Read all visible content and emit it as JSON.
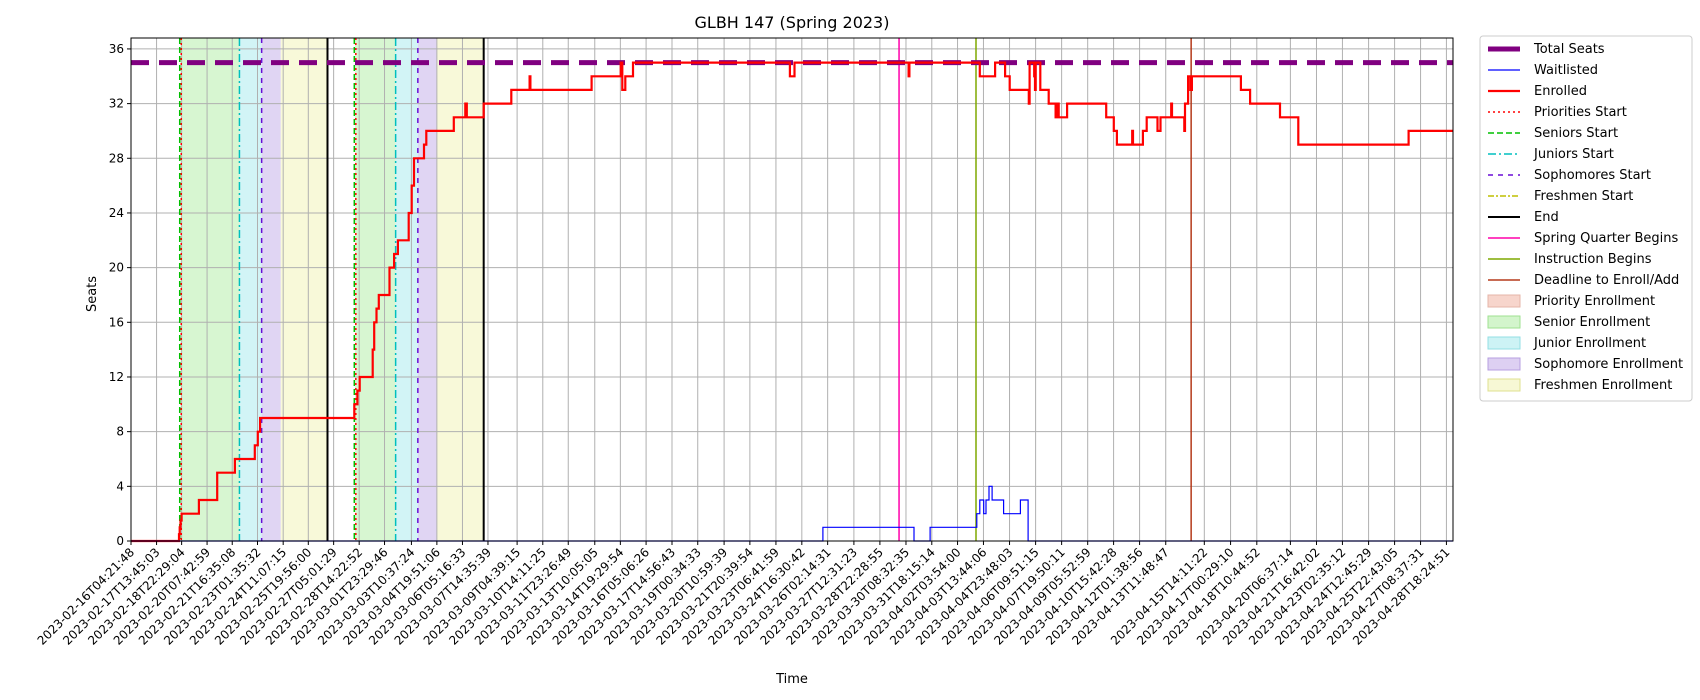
{
  "chart_data": {
    "type": "line",
    "title": "GLBH 147 (Spring 2023)",
    "xlabel": "Time",
    "ylabel": "Seats",
    "ylim": [
      0,
      36.8
    ],
    "yticks": [
      0,
      4,
      8,
      12,
      16,
      20,
      24,
      28,
      32,
      36
    ],
    "xlim": [
      "2023-02-16T04:21:48",
      "2023-04-29T03:00:00"
    ],
    "xticks": [
      "2023-02-16T04:21:48",
      "2023-02-17T13:45:03",
      "2023-02-18T22:29:04",
      "2023-02-20T07:42:59",
      "2023-02-21T16:35:08",
      "2023-02-23T01:35:32",
      "2023-02-24T11:07:15",
      "2023-02-25T19:56:00",
      "2023-02-27T05:01:29",
      "2023-02-28T14:22:52",
      "2023-03-01T23:29:46",
      "2023-03-03T10:37:24",
      "2023-03-04T19:51:06",
      "2023-03-06T05:16:33",
      "2023-03-07T14:35:39",
      "2023-03-09T04:39:15",
      "2023-03-10T14:11:25",
      "2023-03-11T23:26:49",
      "2023-03-13T10:05:05",
      "2023-03-14T19:29:54",
      "2023-03-16T05:06:26",
      "2023-03-17T14:56:43",
      "2023-03-19T00:34:33",
      "2023-03-20T10:59:39",
      "2023-03-21T20:39:54",
      "2023-03-23T06:41:59",
      "2023-03-24T16:30:42",
      "2023-03-26T02:14:31",
      "2023-03-27T12:31:23",
      "2023-03-28T22:28:55",
      "2023-03-30T08:32:35",
      "2023-03-31T18:15:14",
      "2023-04-02T03:54:00",
      "2023-04-03T13:44:06",
      "2023-04-04T23:48:03",
      "2023-04-06T09:51:15",
      "2023-04-07T19:50:11",
      "2023-04-09T05:52:59",
      "2023-04-10T15:42:28",
      "2023-04-12T01:38:56",
      "2023-04-13T11:48:47",
      "2023-04-15T14:11:22",
      "2023-04-17T00:29:10",
      "2023-04-18T10:44:52",
      "2023-04-20T06:37:14",
      "2023-04-21T16:42:02",
      "2023-04-23T02:35:12",
      "2023-04-24T12:45:29",
      "2023-04-25T22:43:05",
      "2023-04-27T08:37:31",
      "2023-04-28T18:24:51"
    ],
    "grid": true,
    "legend_position": "outside-right",
    "total_seats": 35,
    "enrollment_periods": [
      {
        "type": "senior",
        "start": "2023-02-18T21:00:00",
        "end": "2023-02-22T02:00:00"
      },
      {
        "type": "junior",
        "start": "2023-02-22T02:00:00",
        "end": "2023-02-23T07:00:00"
      },
      {
        "type": "sophomore",
        "start": "2023-02-23T07:00:00",
        "end": "2023-02-24T08:00:00"
      },
      {
        "type": "freshmen",
        "start": "2023-02-24T08:00:00",
        "end": "2023-02-26T21:00:00"
      },
      {
        "type": "senior",
        "start": "2023-02-28T09:00:00",
        "end": "2023-03-02T14:00:00"
      },
      {
        "type": "junior",
        "start": "2023-03-02T14:00:00",
        "end": "2023-03-03T19:00:00"
      },
      {
        "type": "sophomore",
        "start": "2023-03-03T19:00:00",
        "end": "2023-03-04T20:00:00"
      },
      {
        "type": "freshmen",
        "start": "2023-03-04T20:00:00",
        "end": "2023-03-07T09:00:00"
      }
    ],
    "event_lines": [
      {
        "type": "seniors_start",
        "x": "2023-02-18T20:00:00"
      },
      {
        "type": "priorities_start",
        "x": "2023-02-18T22:00:00"
      },
      {
        "type": "juniors_start",
        "x": "2023-02-22T02:00:00"
      },
      {
        "type": "sophomores_start",
        "x": "2023-02-23T07:00:00"
      },
      {
        "type": "end",
        "x": "2023-02-26T21:00:00"
      },
      {
        "type": "seniors_start",
        "x": "2023-02-28T08:00:00"
      },
      {
        "type": "priorities_start",
        "x": "2023-02-28T10:00:00"
      },
      {
        "type": "juniors_start",
        "x": "2023-03-02T14:00:00"
      },
      {
        "type": "sophomores_start",
        "x": "2023-03-03T19:00:00"
      },
      {
        "type": "end",
        "x": "2023-03-07T09:00:00"
      },
      {
        "type": "spring_quarter",
        "x": "2023-03-29T23:30:00"
      },
      {
        "type": "instruction",
        "x": "2023-04-03T04:00:00"
      },
      {
        "type": "deadline",
        "x": "2023-04-14T21:00:00"
      }
    ],
    "series": [
      {
        "name": "Enrolled",
        "points": [
          [
            "2023-02-16T04:21:48",
            0
          ],
          [
            "2023-02-18T18:00:00",
            0
          ],
          [
            "2023-02-18T19:00:00",
            0.5
          ],
          [
            "2023-02-18T20:00:00",
            1
          ],
          [
            "2023-02-18T21:00:00",
            1.5
          ],
          [
            "2023-02-18T22:30:00",
            2
          ],
          [
            "2023-02-19T20:00:00",
            2
          ],
          [
            "2023-02-19T21:00:00",
            3
          ],
          [
            "2023-02-20T20:00:00",
            3
          ],
          [
            "2023-02-20T21:00:00",
            5
          ],
          [
            "2023-02-21T19:00:00",
            5
          ],
          [
            "2023-02-21T20:00:00",
            6
          ],
          [
            "2023-02-22T21:00:00",
            6
          ],
          [
            "2023-02-22T22:00:00",
            7
          ],
          [
            "2023-02-23T02:00:00",
            8
          ],
          [
            "2023-02-23T05:00:00",
            9
          ],
          [
            "2023-02-28T07:00:00",
            9
          ],
          [
            "2023-02-28T08:00:00",
            10
          ],
          [
            "2023-02-28T12:00:00",
            11
          ],
          [
            "2023-02-28T15:00:00",
            12
          ],
          [
            "2023-03-01T06:00:00",
            12
          ],
          [
            "2023-03-01T08:00:00",
            14
          ],
          [
            "2023-03-01T10:00:00",
            16
          ],
          [
            "2023-03-01T13:00:00",
            17
          ],
          [
            "2023-03-01T16:00:00",
            18
          ],
          [
            "2023-03-02T04:00:00",
            18
          ],
          [
            "2023-03-02T06:00:00",
            20
          ],
          [
            "2023-03-02T12:00:00",
            21
          ],
          [
            "2023-03-02T17:00:00",
            22
          ],
          [
            "2023-03-03T05:00:00",
            22
          ],
          [
            "2023-03-03T07:00:00",
            24
          ],
          [
            "2023-03-03T11:00:00",
            26
          ],
          [
            "2023-03-03T14:00:00",
            28
          ],
          [
            "2023-03-04T01:00:00",
            28
          ],
          [
            "2023-03-04T03:00:00",
            29
          ],
          [
            "2023-03-04T06:00:00",
            30
          ],
          [
            "2023-03-05T17:00:00",
            30
          ],
          [
            "2023-03-05T18:00:00",
            31
          ],
          [
            "2023-03-06T08:00:00",
            31
          ],
          [
            "2023-03-06T09:00:00",
            32
          ],
          [
            "2023-03-06T11:00:00",
            31
          ],
          [
            "2023-03-07T08:00:00",
            31
          ],
          [
            "2023-03-07T09:00:00",
            32
          ],
          [
            "2023-03-08T20:00:00",
            32
          ],
          [
            "2023-03-08T21:00:00",
            33
          ],
          [
            "2023-03-09T20:00:00",
            33
          ],
          [
            "2023-03-09T21:00:00",
            34
          ],
          [
            "2023-03-09T22:00:00",
            33
          ],
          [
            "2023-03-13T05:00:00",
            33
          ],
          [
            "2023-03-13T06:00:00",
            34
          ],
          [
            "2023-03-14T19:00:00",
            34
          ],
          [
            "2023-03-14T20:00:00",
            35
          ],
          [
            "2023-03-14T22:00:00",
            33
          ],
          [
            "2023-03-15T02:00:00",
            34
          ],
          [
            "2023-03-15T11:00:00",
            34
          ],
          [
            "2023-03-15T12:00:00",
            35
          ],
          [
            "2023-03-24T00:00:00",
            35
          ],
          [
            "2023-03-24T01:00:00",
            34
          ],
          [
            "2023-03-24T06:00:00",
            34
          ],
          [
            "2023-03-24T07:00:00",
            35
          ],
          [
            "2023-03-30T11:00:00",
            35
          ],
          [
            "2023-03-30T12:00:00",
            34
          ],
          [
            "2023-03-30T13:00:00",
            35
          ],
          [
            "2023-04-03T08:00:00",
            35
          ],
          [
            "2023-04-03T09:00:00",
            34
          ],
          [
            "2023-04-04T04:00:00",
            34
          ],
          [
            "2023-04-04T05:00:00",
            35
          ],
          [
            "2023-04-04T17:00:00",
            35
          ],
          [
            "2023-04-04T18:00:00",
            34
          ],
          [
            "2023-04-05T00:00:00",
            33
          ],
          [
            "2023-04-06T00:00:00",
            33
          ],
          [
            "2023-04-06T01:00:00",
            32
          ],
          [
            "2023-04-06T02:00:00",
            35
          ],
          [
            "2023-04-06T08:00:00",
            34
          ],
          [
            "2023-04-06T09:00:00",
            33
          ],
          [
            "2023-04-06T10:00:00",
            35
          ],
          [
            "2023-04-06T16:00:00",
            33
          ],
          [
            "2023-04-07T03:00:00",
            32
          ],
          [
            "2023-04-07T11:00:00",
            32
          ],
          [
            "2023-04-07T12:00:00",
            31
          ],
          [
            "2023-04-07T14:00:00",
            32
          ],
          [
            "2023-04-07T16:00:00",
            31
          ],
          [
            "2023-04-08T03:00:00",
            32
          ],
          [
            "2023-04-10T04:00:00",
            32
          ],
          [
            "2023-04-10T06:00:00",
            31
          ],
          [
            "2023-04-10T16:00:00",
            30
          ],
          [
            "2023-04-10T20:00:00",
            29
          ],
          [
            "2023-04-11T15:00:00",
            29
          ],
          [
            "2023-04-11T16:00:00",
            30
          ],
          [
            "2023-04-11T17:00:00",
            29
          ],
          [
            "2023-04-12T05:00:00",
            29
          ],
          [
            "2023-04-12T06:00:00",
            30
          ],
          [
            "2023-04-12T11:00:00",
            31
          ],
          [
            "2023-04-13T00:00:00",
            31
          ],
          [
            "2023-04-13T01:00:00",
            30
          ],
          [
            "2023-04-13T05:00:00",
            31
          ],
          [
            "2023-04-13T18:00:00",
            31
          ],
          [
            "2023-04-13T19:00:00",
            32
          ],
          [
            "2023-04-13T20:00:00",
            31
          ],
          [
            "2023-04-14T11:00:00",
            31
          ],
          [
            "2023-04-14T12:00:00",
            30
          ],
          [
            "2023-04-14T13:00:00",
            32
          ],
          [
            "2023-04-14T17:00:00",
            34
          ],
          [
            "2023-04-14T20:00:00",
            33
          ],
          [
            "2023-04-14T22:00:00",
            34
          ],
          [
            "2023-04-17T13:00:00",
            34
          ],
          [
            "2023-04-17T14:00:00",
            33
          ],
          [
            "2023-04-18T02:00:00",
            32
          ],
          [
            "2023-04-19T16:00:00",
            32
          ],
          [
            "2023-04-19T17:00:00",
            31
          ],
          [
            "2023-04-20T16:00:00",
            31
          ],
          [
            "2023-04-20T17:00:00",
            29
          ],
          [
            "2023-04-26T16:00:00",
            29
          ],
          [
            "2023-04-26T17:00:00",
            30
          ],
          [
            "2023-04-29T03:00:00",
            30
          ]
        ]
      },
      {
        "name": "Waitlisted",
        "points": [
          [
            "2023-02-16T04:21:48",
            0
          ],
          [
            "2023-03-25T19:00:00",
            0
          ],
          [
            "2023-03-25T20:00:00",
            1
          ],
          [
            "2023-03-30T18:00:00",
            1
          ],
          [
            "2023-03-30T19:00:00",
            0
          ],
          [
            "2023-03-31T15:00:00",
            0
          ],
          [
            "2023-03-31T16:00:00",
            1
          ],
          [
            "2023-04-03T04:00:00",
            1
          ],
          [
            "2023-04-03T05:00:00",
            2
          ],
          [
            "2023-04-03T09:00:00",
            3
          ],
          [
            "2023-04-03T14:00:00",
            2
          ],
          [
            "2023-04-03T17:00:00",
            3
          ],
          [
            "2023-04-03T21:00:00",
            4
          ],
          [
            "2023-04-04T01:00:00",
            3
          ],
          [
            "2023-04-04T16:00:00",
            2
          ],
          [
            "2023-04-05T14:00:00",
            3
          ],
          [
            "2023-04-06T00:00:00",
            0
          ],
          [
            "2023-04-29T03:00:00",
            0
          ]
        ]
      }
    ],
    "legend": [
      "Total Seats",
      "Waitlisted",
      "Enrolled",
      "Priorities Start",
      "Seniors Start",
      "Juniors Start",
      "Sophomores Start",
      "Freshmen Start",
      "End",
      "Spring Quarter Begins",
      "Instruction Begins",
      "Deadline to Enroll/Add",
      "Priority Enrollment",
      "Senior Enrollment",
      "Junior Enrollment",
      "Sophomore Enrollment",
      "Freshmen Enrollment"
    ],
    "colors": {
      "total_seats": "#800080",
      "waitlisted": "#0000ff",
      "enrolled": "#ff0000",
      "priorities_start": "#ff0000",
      "seniors_start": "#00bf00",
      "juniors_start": "#00bfbf",
      "sophomores_start": "#6a0dd6",
      "freshmen_start": "#bfbf00",
      "end": "#000000",
      "spring_quarter": "#ff00aa",
      "instruction": "#7fa800",
      "deadline": "#b53a1a",
      "priority_fill": "#f7d5cc",
      "senior_fill": "#d3f5cc",
      "junior_fill": "#cdf3f5",
      "sophomore_fill": "#ddd0f2",
      "freshmen_fill": "#f7f8d5"
    }
  }
}
